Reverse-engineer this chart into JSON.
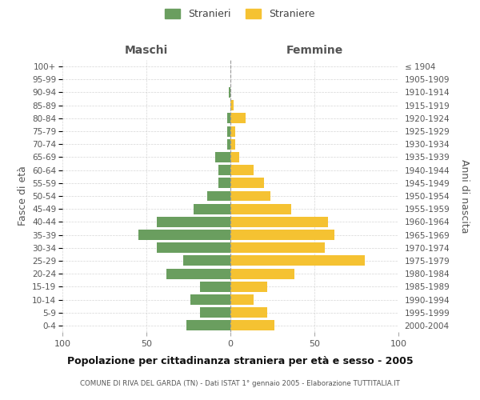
{
  "age_groups_bottom_to_top": [
    "0-4",
    "5-9",
    "10-14",
    "15-19",
    "20-24",
    "25-29",
    "30-34",
    "35-39",
    "40-44",
    "45-49",
    "50-54",
    "55-59",
    "60-64",
    "65-69",
    "70-74",
    "75-79",
    "80-84",
    "85-89",
    "90-94",
    "95-99",
    "100+"
  ],
  "birth_years_bottom_to_top": [
    "2000-2004",
    "1995-1999",
    "1990-1994",
    "1985-1989",
    "1980-1984",
    "1975-1979",
    "1970-1974",
    "1965-1969",
    "1960-1964",
    "1955-1959",
    "1950-1954",
    "1945-1949",
    "1940-1944",
    "1935-1939",
    "1930-1934",
    "1925-1929",
    "1920-1924",
    "1915-1919",
    "1910-1914",
    "1905-1909",
    "≤ 1904"
  ],
  "maschi_bottom_to_top": [
    26,
    18,
    24,
    18,
    38,
    28,
    44,
    55,
    44,
    22,
    14,
    7,
    7,
    9,
    2,
    2,
    2,
    0,
    1,
    0,
    0
  ],
  "femmine_bottom_to_top": [
    26,
    22,
    14,
    22,
    38,
    80,
    56,
    62,
    58,
    36,
    24,
    20,
    14,
    5,
    3,
    3,
    9,
    2,
    0,
    0,
    0
  ],
  "maschi_color": "#6a9e5f",
  "femmine_color": "#f5c232",
  "background_color": "#ffffff",
  "grid_color": "#cccccc",
  "title": "Popolazione per cittadinanza straniera per età e sesso - 2005",
  "subtitle": "COMUNE DI RIVA DEL GARDA (TN) - Dati ISTAT 1° gennaio 2005 - Elaborazione TUTTITALIA.IT",
  "xlabel_left": "Maschi",
  "xlabel_right": "Femmine",
  "ylabel_left": "Fasce di età",
  "ylabel_right": "Anni di nascita",
  "legend_maschi": "Stranieri",
  "legend_femmine": "Straniere",
  "xlim": 100
}
